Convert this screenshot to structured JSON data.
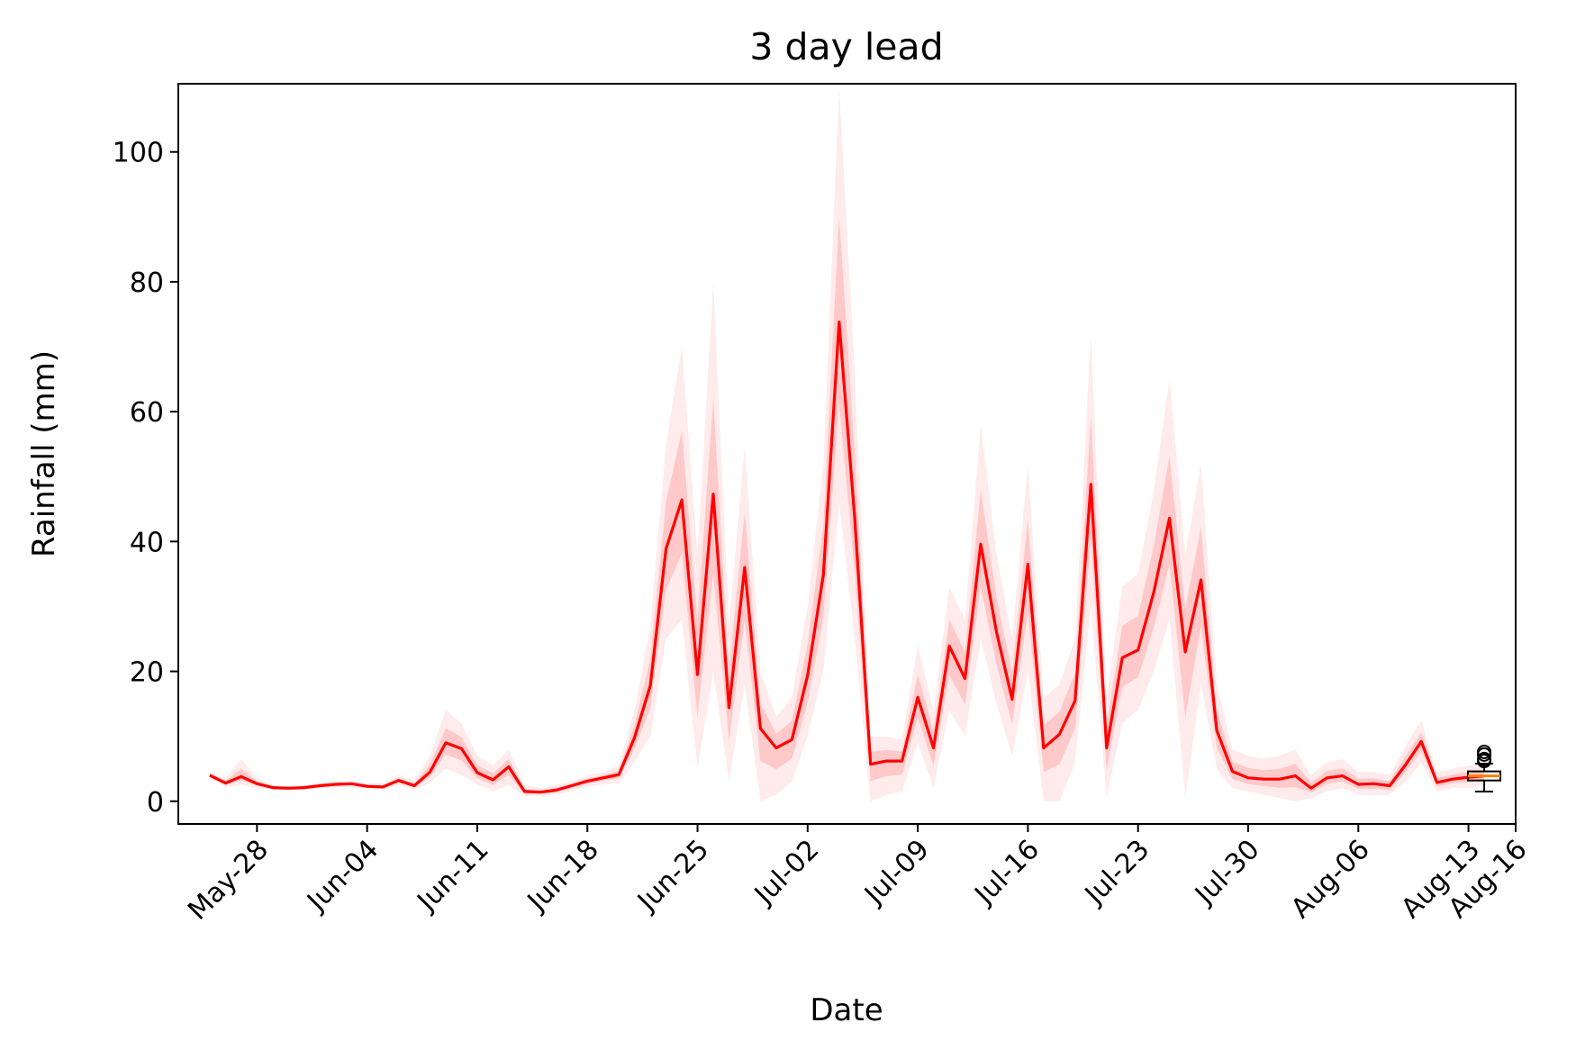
{
  "chart_data": {
    "type": "line",
    "title": "3 day lead",
    "xlabel": "Date",
    "ylabel": "Rainfall (mm)",
    "x_range": [
      "2023-05-23",
      "2023-08-16"
    ],
    "ylim": [
      -3.5,
      110.5
    ],
    "grid": false,
    "y_ticks": [
      0,
      20,
      40,
      60,
      80,
      100
    ],
    "x_ticks": [
      {
        "date": "2023-05-28",
        "label": "May-28"
      },
      {
        "date": "2023-06-04",
        "label": "Jun-04"
      },
      {
        "date": "2023-06-11",
        "label": "Jun-11"
      },
      {
        "date": "2023-06-18",
        "label": "Jun-18"
      },
      {
        "date": "2023-06-25",
        "label": "Jun-25"
      },
      {
        "date": "2023-07-02",
        "label": "Jul-02"
      },
      {
        "date": "2023-07-09",
        "label": "Jul-09"
      },
      {
        "date": "2023-07-16",
        "label": "Jul-16"
      },
      {
        "date": "2023-07-23",
        "label": "Jul-23"
      },
      {
        "date": "2023-07-30",
        "label": "Jul-30"
      },
      {
        "date": "2023-08-06",
        "label": "Aug-06"
      },
      {
        "date": "2023-08-13",
        "label": "Aug-13"
      },
      {
        "date": "2023-08-16",
        "label": "Aug-16"
      }
    ],
    "series": [
      {
        "color": "#ff0000",
        "x": [
          "2023-05-25",
          "2023-05-26",
          "2023-05-27",
          "2023-05-28",
          "2023-05-29",
          "2023-05-30",
          "2023-05-31",
          "2023-06-01",
          "2023-06-02",
          "2023-06-03",
          "2023-06-04",
          "2023-06-05",
          "2023-06-06",
          "2023-06-07",
          "2023-06-08",
          "2023-06-09",
          "2023-06-10",
          "2023-06-11",
          "2023-06-12",
          "2023-06-13",
          "2023-06-14",
          "2023-06-15",
          "2023-06-16",
          "2023-06-17",
          "2023-06-18",
          "2023-06-19",
          "2023-06-20",
          "2023-06-21",
          "2023-06-22",
          "2023-06-23",
          "2023-06-24",
          "2023-06-25",
          "2023-06-26",
          "2023-06-27",
          "2023-06-28",
          "2023-06-29",
          "2023-06-30",
          "2023-07-01",
          "2023-07-02",
          "2023-07-03",
          "2023-07-04",
          "2023-07-05",
          "2023-07-06",
          "2023-07-07",
          "2023-07-08",
          "2023-07-09",
          "2023-07-10",
          "2023-07-11",
          "2023-07-12",
          "2023-07-13",
          "2023-07-14",
          "2023-07-15",
          "2023-07-16",
          "2023-07-17",
          "2023-07-18",
          "2023-07-19",
          "2023-07-20",
          "2023-07-21",
          "2023-07-22",
          "2023-07-23",
          "2023-07-24",
          "2023-07-25",
          "2023-07-26",
          "2023-07-27",
          "2023-07-28",
          "2023-07-29",
          "2023-07-30",
          "2023-07-31",
          "2023-08-01",
          "2023-08-02",
          "2023-08-03",
          "2023-08-04",
          "2023-08-05",
          "2023-08-06",
          "2023-08-07",
          "2023-08-08",
          "2023-08-09",
          "2023-08-10",
          "2023-08-11",
          "2023-08-12",
          "2023-08-13",
          "2023-08-14"
        ],
        "y": [
          4.0,
          2.8,
          3.8,
          2.7,
          2.1,
          2.0,
          2.1,
          2.4,
          2.6,
          2.7,
          2.3,
          2.2,
          3.2,
          2.4,
          4.5,
          9.0,
          8.1,
          4.4,
          3.3,
          5.3,
          1.5,
          1.4,
          1.7,
          2.4,
          3.1,
          3.6,
          4.1,
          9.8,
          17.8,
          38.9,
          46.4,
          19.5,
          47.3,
          14.4,
          36.0,
          11.2,
          8.2,
          9.5,
          19.4,
          34.9,
          73.8,
          43.4,
          5.7,
          6.2,
          6.2,
          16.0,
          8.2,
          23.9,
          18.9,
          39.6,
          26.1,
          15.7,
          36.5,
          8.2,
          10.3,
          15.5,
          48.8,
          8.2,
          22.1,
          23.3,
          32.2,
          43.6,
          23.0,
          34.1,
          10.9,
          4.6,
          3.6,
          3.4,
          3.4,
          3.9,
          2.0,
          3.6,
          3.9,
          2.6,
          2.7,
          2.4,
          5.6,
          9.2,
          2.9,
          3.4,
          3.7,
          3.9
        ]
      }
    ],
    "ensemble": {
      "color": "#ff0000",
      "upper": [
        4.5,
        3.5,
        6.5,
        3.5,
        2.5,
        2.3,
        2.5,
        2.9,
        3.1,
        3.2,
        2.8,
        2.7,
        4.0,
        3.2,
        7.0,
        14.0,
        12.0,
        7.0,
        5.5,
        8.0,
        2.5,
        2.0,
        2.5,
        3.0,
        4.0,
        4.5,
        5.5,
        14.0,
        27.0,
        55.0,
        70.0,
        38.0,
        80.0,
        27.0,
        55.0,
        20.0,
        13.0,
        16.0,
        30.0,
        52.0,
        110.0,
        66.0,
        10.0,
        10.0,
        9.5,
        24.0,
        14.0,
        33.0,
        28.0,
        58.0,
        38.0,
        25.0,
        52.0,
        16.0,
        18.0,
        25.0,
        72.0,
        16.0,
        33.0,
        35.0,
        48.0,
        65.0,
        38.0,
        52.0,
        18.0,
        8.0,
        7.0,
        6.5,
        7.0,
        8.0,
        4.0,
        6.0,
        6.5,
        4.5,
        4.5,
        4.0,
        8.5,
        12.5,
        4.5,
        5.0,
        5.5,
        5.5
      ],
      "lower": [
        3.5,
        2.2,
        2.5,
        2.1,
        1.7,
        1.7,
        1.8,
        2.0,
        2.1,
        2.2,
        1.9,
        1.8,
        2.5,
        1.8,
        2.8,
        5.0,
        4.0,
        2.5,
        1.5,
        2.5,
        0.8,
        0.8,
        1.0,
        1.6,
        2.2,
        2.6,
        2.8,
        6.0,
        10.0,
        25.0,
        28.0,
        5.0,
        20.0,
        3.0,
        18.0,
        0.0,
        1.0,
        3.0,
        10.0,
        20.0,
        46.0,
        25.0,
        0.0,
        1.0,
        1.5,
        9.0,
        2.0,
        14.0,
        10.0,
        25.0,
        15.0,
        7.0,
        20.0,
        0.0,
        0.0,
        6.0,
        30.0,
        0.5,
        12.0,
        14.0,
        20.0,
        28.0,
        0.5,
        18.0,
        5.0,
        2.0,
        1.5,
        1.0,
        0.5,
        0.0,
        0.5,
        1.5,
        2.0,
        1.0,
        1.0,
        1.0,
        3.0,
        6.0,
        1.5,
        2.0,
        2.0,
        2.5
      ]
    },
    "boxplot": {
      "x": "2023-08-14",
      "whisker_low": 1.5,
      "q1": 3.2,
      "median": 3.9,
      "q3": 4.6,
      "whisker_high": 5.8,
      "median_color": "#ff7f0e",
      "fliers": [
        6.2,
        6.5,
        7.2,
        7.6
      ]
    }
  }
}
